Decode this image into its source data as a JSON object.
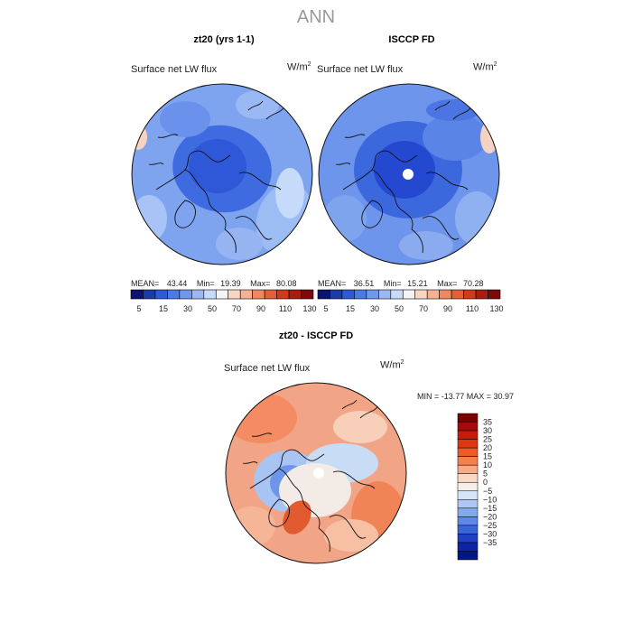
{
  "page": {
    "title": "ANN"
  },
  "panels": [
    {
      "id": "model",
      "title": "zt20 (yrs 1-1)",
      "variable": "Surface net LW flux",
      "unit_base": "W/m",
      "unit_exp": "2",
      "stats": {
        "mean_label": "MEAN=",
        "mean": "43.44",
        "min_label": "Min=",
        "min": "19.39",
        "max_label": "Max=",
        "max": "80.08"
      }
    },
    {
      "id": "obs",
      "title": "ISCCP FD",
      "variable": "Surface net LW flux",
      "unit_base": "W/m",
      "unit_exp": "2",
      "stats": {
        "mean_label": "MEAN=",
        "mean": "36.51",
        "min_label": "Min=",
        "min": "15.21",
        "max_label": "Max=",
        "max": "70.28"
      }
    },
    {
      "id": "diff",
      "title": "zt20 - ISCCP FD",
      "variable": "Surface net LW flux",
      "unit_base": "W/m",
      "unit_exp": "2",
      "stats_text": "MIN = -13.77 MAX =  30.97"
    }
  ],
  "colorbar_top": {
    "colors": [
      "#0a1470",
      "#1c3aa8",
      "#2e5ad8",
      "#4a7ae8",
      "#6f97ee",
      "#9cb8f2",
      "#c8daf8",
      "#f3f3f3",
      "#f7d6c4",
      "#f5b193",
      "#ef8860",
      "#e45f38",
      "#cf3a1a",
      "#a81d10",
      "#7c0a0a"
    ],
    "labels": [
      "5",
      "15",
      "30",
      "50",
      "70",
      "90",
      "110",
      "130"
    ]
  },
  "colorbar_diff": {
    "colors": [
      "#7a0000",
      "#a50a0a",
      "#c71c0c",
      "#e0360f",
      "#f05a28",
      "#f58150",
      "#f7ab8a",
      "#fbd8c5",
      "#f6efe8",
      "#d6e4f8",
      "#adc8f2",
      "#85aaec",
      "#5d88e6",
      "#3a65d9",
      "#1f3fc4",
      "#0e24a6",
      "#041585"
    ],
    "labels": [
      "35",
      "30",
      "25",
      "20",
      "15",
      "10",
      "5",
      "0",
      "−5",
      "−10",
      "−15",
      "−20",
      "−25",
      "−30",
      "−35"
    ]
  }
}
